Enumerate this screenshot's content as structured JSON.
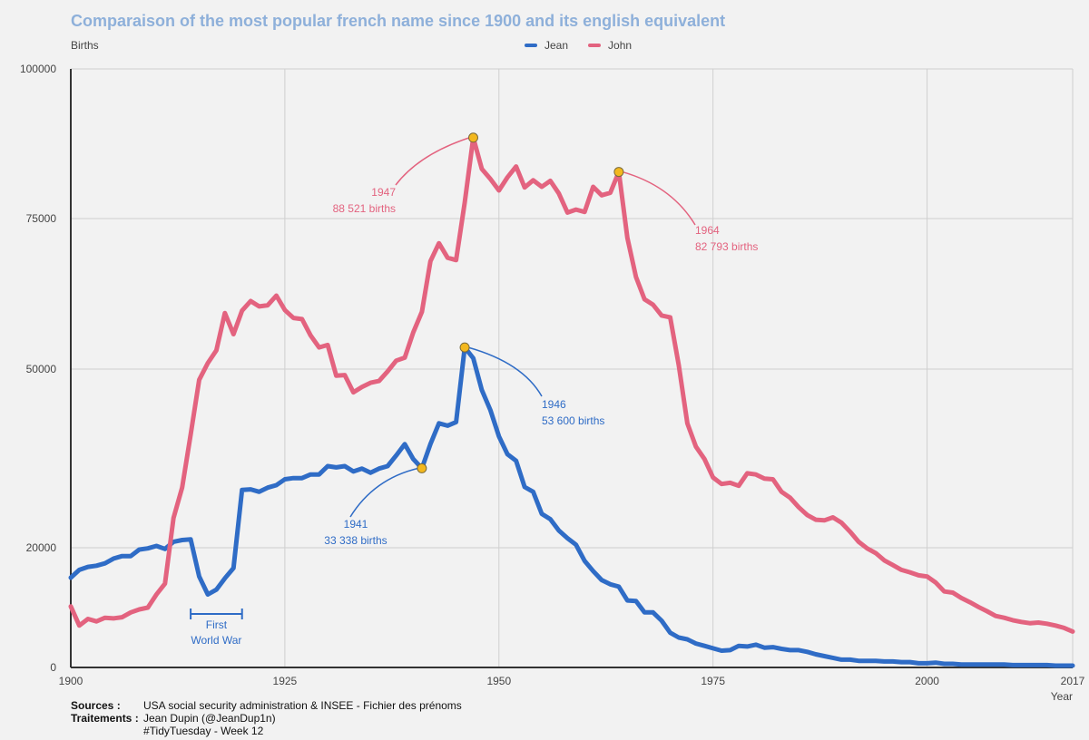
{
  "header": {
    "title": "Comparaison of the most popular french name since 1900 and its english equivalent"
  },
  "colors": {
    "jean": "#2f6cc6",
    "john": "#e3637f",
    "highlight": "#f3b81e",
    "grid": "#cfcfcf",
    "axis": "#333333"
  },
  "footer": {
    "sources_label": "Sources :",
    "sources_value": "USA social security administration & INSEE - Fichier des prénoms",
    "traitements_label": "Traitements :",
    "traitements_line1": "Jean Dupin (@JeanDup1n)",
    "traitements_line2": "#TidyTuesday - Week 12"
  },
  "chart_data": {
    "type": "line",
    "ylabel": "Births",
    "xlabel": "Year",
    "xlim": [
      1900,
      2017
    ],
    "x_ticks": [
      1900,
      1925,
      1950,
      1975,
      2000,
      2017
    ],
    "y_ticks": [
      {
        "value": 0,
        "label": "0"
      },
      {
        "value": 20000,
        "label": "20000"
      },
      {
        "value": 50000,
        "label": "50000"
      },
      {
        "value": 75000,
        "label": "75000"
      },
      {
        "value": 100000,
        "label": "100000"
      }
    ],
    "grid": true,
    "legend_position": "top-center",
    "x": [
      1900,
      1901,
      1902,
      1903,
      1904,
      1905,
      1906,
      1907,
      1908,
      1909,
      1910,
      1911,
      1912,
      1913,
      1914,
      1915,
      1916,
      1917,
      1918,
      1919,
      1920,
      1921,
      1922,
      1923,
      1924,
      1925,
      1926,
      1927,
      1928,
      1929,
      1930,
      1931,
      1932,
      1933,
      1934,
      1935,
      1936,
      1937,
      1938,
      1939,
      1940,
      1941,
      1942,
      1943,
      1944,
      1945,
      1946,
      1947,
      1948,
      1949,
      1950,
      1951,
      1952,
      1953,
      1954,
      1955,
      1956,
      1957,
      1958,
      1959,
      1960,
      1961,
      1962,
      1963,
      1964,
      1965,
      1966,
      1967,
      1968,
      1969,
      1970,
      1971,
      1972,
      1973,
      1974,
      1975,
      1976,
      1977,
      1978,
      1979,
      1980,
      1981,
      1982,
      1983,
      1984,
      1985,
      1986,
      1987,
      1988,
      1989,
      1990,
      1991,
      1992,
      1993,
      1994,
      1995,
      1996,
      1997,
      1998,
      1999,
      2000,
      2001,
      2002,
      2003,
      2004,
      2005,
      2006,
      2007,
      2008,
      2009,
      2010,
      2011,
      2012,
      2013,
      2014,
      2015,
      2016,
      2017
    ],
    "series": [
      {
        "name": "Jean",
        "values": [
          15000,
          16300,
          16800,
          17000,
          17400,
          18200,
          18600,
          18600,
          19700,
          19900,
          20300,
          19800,
          21000,
          21300,
          21400,
          15200,
          12200,
          13000,
          14900,
          16600,
          29700,
          29800,
          29400,
          30100,
          30500,
          31500,
          31700,
          31700,
          32300,
          32300,
          33700,
          33500,
          33700,
          32800,
          33300,
          32600,
          33300,
          33700,
          35500,
          37400,
          34900,
          33338,
          37400,
          40900,
          40500,
          41100,
          53600,
          51800,
          46500,
          43100,
          38700,
          35700,
          34600,
          30200,
          29400,
          25700,
          24800,
          22900,
          21600,
          20500,
          17800,
          16100,
          14600,
          13900,
          13500,
          11200,
          11100,
          9200,
          9200,
          7800,
          5800,
          5000,
          4700,
          4000,
          3600,
          3200,
          2800,
          2900,
          3600,
          3500,
          3800,
          3300,
          3400,
          3100,
          2900,
          2900,
          2600,
          2200,
          1900,
          1600,
          1300,
          1300,
          1100,
          1100,
          1100,
          1000,
          1000,
          900,
          900,
          700,
          700,
          800,
          600,
          600,
          500,
          500,
          500,
          500,
          500,
          500,
          400,
          400,
          400,
          400,
          400,
          300,
          300,
          300
        ]
      },
      {
        "name": "John",
        "values": [
          10200,
          7000,
          8100,
          7700,
          8300,
          8200,
          8400,
          9200,
          9700,
          10000,
          12200,
          14000,
          25000,
          30100,
          39000,
          48200,
          51000,
          53100,
          59300,
          55800,
          59700,
          61300,
          60400,
          60600,
          62200,
          59800,
          58500,
          58300,
          55600,
          53600,
          54000,
          48900,
          49000,
          46100,
          47000,
          47700,
          48000,
          49600,
          51400,
          51900,
          56100,
          59500,
          67900,
          70900,
          68500,
          68100,
          77700,
          88521,
          83300,
          81600,
          79700,
          81900,
          83700,
          80200,
          81400,
          80300,
          81300,
          79200,
          76000,
          76500,
          76100,
          80300,
          78900,
          79300,
          82793,
          71800,
          65300,
          61600,
          60700,
          58900,
          58600,
          50700,
          40900,
          37000,
          34900,
          31800,
          30700,
          30900,
          30400,
          32500,
          32300,
          31600,
          31500,
          29400,
          28400,
          26800,
          25500,
          24700,
          24600,
          25100,
          24200,
          22700,
          21000,
          19900,
          19100,
          17900,
          17100,
          16300,
          15900,
          15400,
          15200,
          14200,
          12700,
          12500,
          11600,
          10900,
          10100,
          9400,
          8600,
          8300,
          7900,
          7600,
          7400,
          7500,
          7300,
          7000,
          6600,
          6000
        ]
      }
    ],
    "annotations": [
      {
        "series": "John",
        "year": 1947,
        "value": 88521,
        "text1": "1947",
        "text2": "88 521 births"
      },
      {
        "series": "John",
        "year": 1964,
        "value": 82793,
        "text1": "1964",
        "text2": "82 793 births"
      },
      {
        "series": "Jean",
        "year": 1946,
        "value": 53600,
        "text1": "1946",
        "text2": "53 600 births"
      },
      {
        "series": "Jean",
        "year": 1941,
        "value": 33338,
        "text1": "1941",
        "text2": "33 338 births"
      }
    ],
    "event": {
      "start": 1914,
      "end": 1920,
      "text1": "First",
      "text2": "World War"
    }
  }
}
